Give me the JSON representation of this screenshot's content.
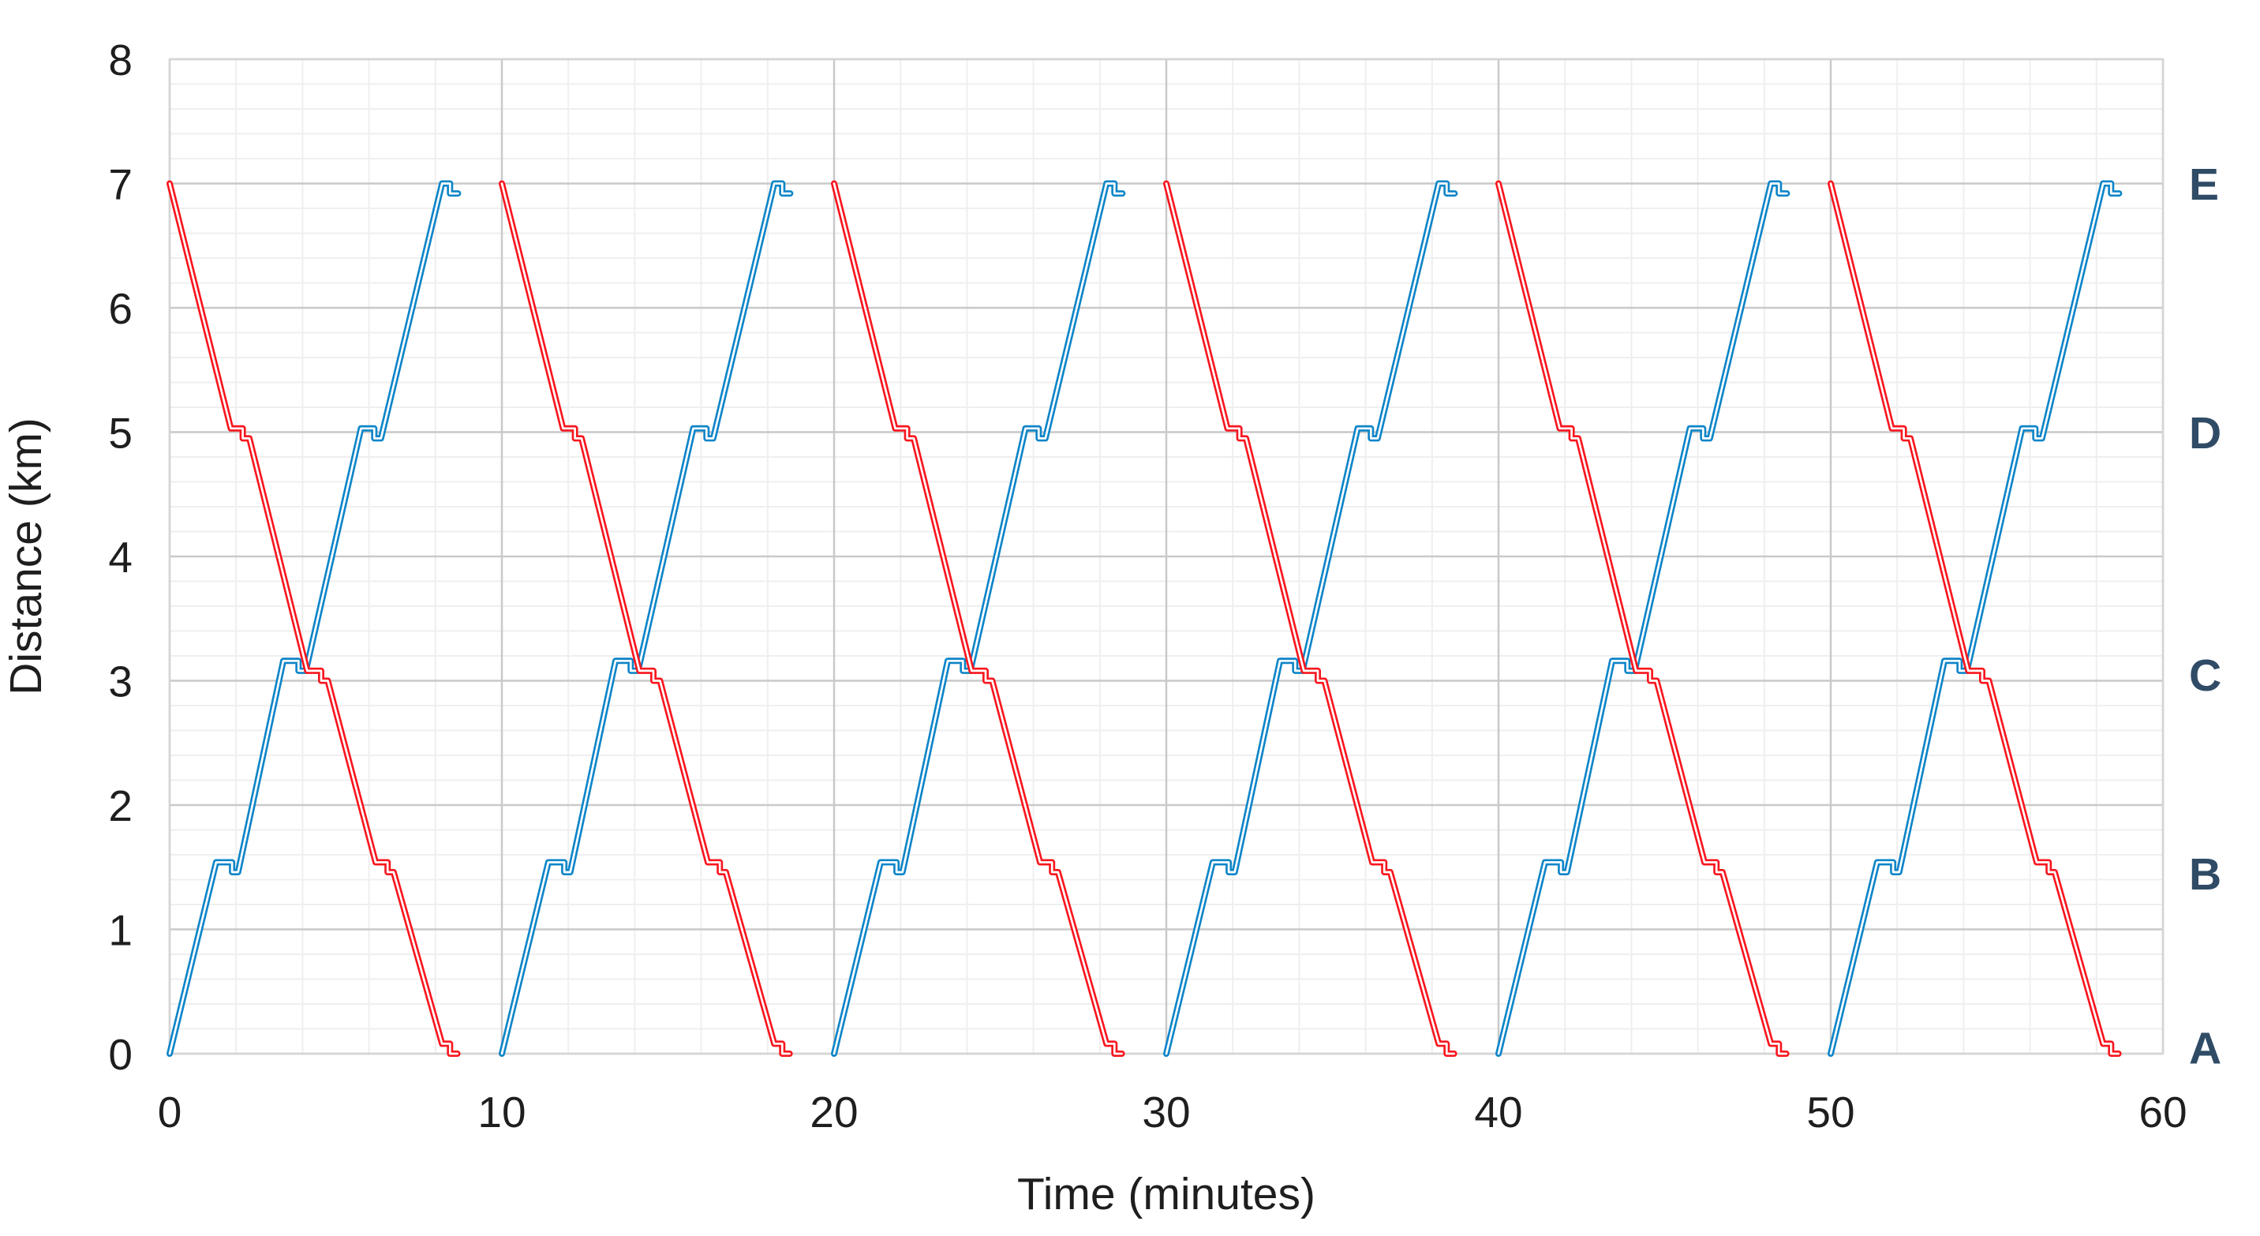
{
  "chart_data": {
    "type": "line",
    "title": "",
    "xlabel": "Time (minutes)",
    "ylabel": "Distance (km)",
    "xlim": [
      0,
      60
    ],
    "ylim": [
      0,
      8
    ],
    "x_major_ticks": [
      0,
      10,
      20,
      30,
      40,
      50,
      60
    ],
    "y_major_ticks": [
      0,
      1,
      2,
      3,
      4,
      5,
      6,
      7,
      8
    ],
    "x_minor_step_min": 2,
    "y_minor_step_km": 0.2,
    "grid": "on",
    "legend": "none",
    "station_labels": [
      {
        "label": "E",
        "distance_km": 7.0
      },
      {
        "label": "D",
        "distance_km": 5.0
      },
      {
        "label": "C",
        "distance_km": 3.05
      },
      {
        "label": "B",
        "distance_km": 1.45
      },
      {
        "label": "A",
        "distance_km": 0.05
      }
    ],
    "service_start_times_min": [
      0,
      10,
      20,
      30,
      40,
      50
    ],
    "series": [
      {
        "name": "up-train-A-to-E",
        "color": "#0e85c8",
        "direction": "A to E",
        "profile_t_min_vs_d_km": [
          [
            0.0,
            0.0
          ],
          [
            1.4,
            1.54
          ],
          [
            1.88,
            1.54
          ],
          [
            1.88,
            1.46
          ],
          [
            2.06,
            1.46
          ],
          [
            3.42,
            3.16
          ],
          [
            3.88,
            3.16
          ],
          [
            3.88,
            3.08
          ],
          [
            4.1,
            3.08
          ],
          [
            5.76,
            5.03
          ],
          [
            6.16,
            5.03
          ],
          [
            6.16,
            4.95
          ],
          [
            6.36,
            4.95
          ],
          [
            8.2,
            7.0
          ],
          [
            8.44,
            7.0
          ],
          [
            8.44,
            6.92
          ],
          [
            8.68,
            6.92
          ]
        ]
      },
      {
        "name": "down-train-E-to-A",
        "color": "#f8161e",
        "direction": "E to A",
        "profile_t_min_vs_d_km": [
          [
            0.0,
            7.0
          ],
          [
            1.84,
            5.03
          ],
          [
            2.2,
            5.03
          ],
          [
            2.2,
            4.95
          ],
          [
            2.4,
            4.95
          ],
          [
            4.14,
            3.08
          ],
          [
            4.56,
            3.08
          ],
          [
            4.56,
            3.0
          ],
          [
            4.76,
            3.0
          ],
          [
            6.2,
            1.54
          ],
          [
            6.56,
            1.54
          ],
          [
            6.56,
            1.46
          ],
          [
            6.74,
            1.46
          ],
          [
            8.2,
            0.08
          ],
          [
            8.44,
            0.08
          ],
          [
            8.44,
            0.0
          ],
          [
            8.66,
            0.0
          ]
        ]
      }
    ]
  },
  "colors": {
    "background": "#ffffff",
    "minor_grid": "#efefef",
    "major_grid": "#c9c9c9",
    "plot_border": "#d5d5d5",
    "tick_text": "#1e1e1e",
    "axis_title_text": "#1e1e1e",
    "station_label_text": "#2f4b66",
    "line_core": "#ffffff"
  }
}
